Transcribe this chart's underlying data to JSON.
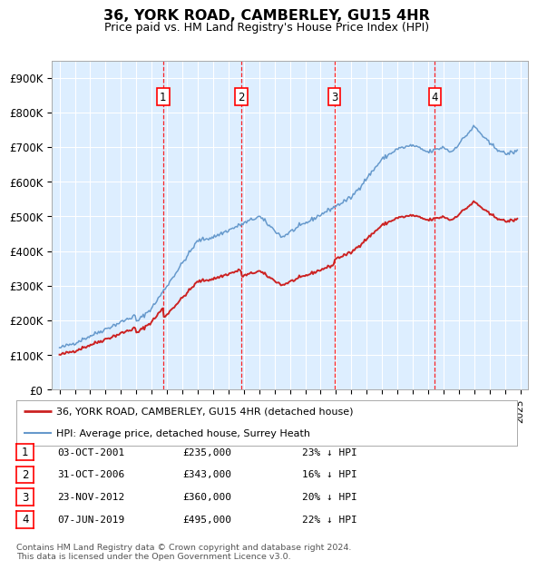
{
  "title": "36, YORK ROAD, CAMBERLEY, GU15 4HR",
  "subtitle": "Price paid vs. HM Land Registry's House Price Index (HPI)",
  "ylim": [
    0,
    950000
  ],
  "yticks": [
    0,
    100000,
    200000,
    300000,
    400000,
    500000,
    600000,
    700000,
    800000,
    900000
  ],
  "ytick_labels": [
    "£0",
    "£100K",
    "£200K",
    "£300K",
    "£400K",
    "£500K",
    "£600K",
    "£700K",
    "£800K",
    "£900K"
  ],
  "hpi_color": "#6699cc",
  "price_color": "#cc2222",
  "plot_bg_color": "#ddeeff",
  "grid_color": "#ffffff",
  "sale_year_nums": [
    2001.75,
    2006.833,
    2012.9,
    2019.44
  ],
  "sale_prices_vals": [
    235000,
    343000,
    360000,
    495000
  ],
  "sale_labels": [
    "1",
    "2",
    "3",
    "4"
  ],
  "sale_info": [
    {
      "label": "1",
      "date": "03-OCT-2001",
      "price": "£235,000",
      "pct": "23% ↓ HPI"
    },
    {
      "label": "2",
      "date": "31-OCT-2006",
      "price": "£343,000",
      "pct": "16% ↓ HPI"
    },
    {
      "label": "3",
      "date": "23-NOV-2012",
      "price": "£360,000",
      "pct": "20% ↓ HPI"
    },
    {
      "label": "4",
      "date": "07-JUN-2019",
      "price": "£495,000",
      "pct": "22% ↓ HPI"
    }
  ],
  "legend_line1": "36, YORK ROAD, CAMBERLEY, GU15 4HR (detached house)",
  "legend_line2": "HPI: Average price, detached house, Surrey Heath",
  "footer": "Contains HM Land Registry data © Crown copyright and database right 2024.\nThis data is licensed under the Open Government Licence v3.0.",
  "xlim_start": 1994.5,
  "xlim_end": 2025.5
}
